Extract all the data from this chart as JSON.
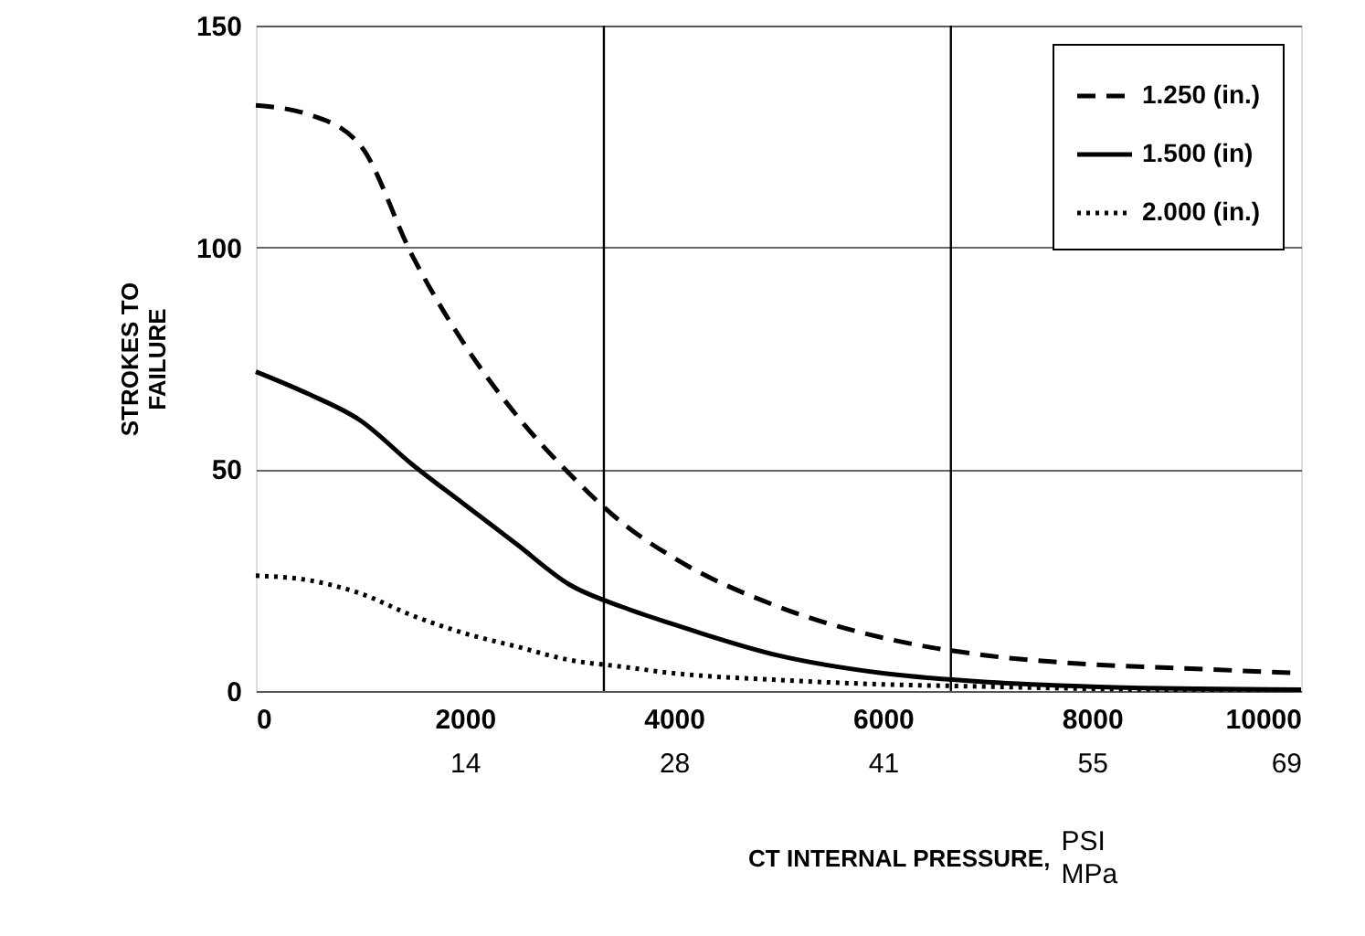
{
  "chart_data": {
    "type": "line",
    "ylabel": "STROKES TO FAILURE",
    "xlabel": "CT INTERNAL PRESSURE,",
    "annotations": [
      "PSI",
      "MPa"
    ],
    "x": [
      0,
      500,
      1000,
      1500,
      2000,
      2500,
      3000,
      3500,
      4000,
      5000,
      6000,
      7000,
      8000,
      9000,
      10000
    ],
    "series": [
      {
        "name": "1.250 (in.)",
        "color": "#000000",
        "line_style": "dashed",
        "values": [
          132,
          130,
          123,
          98,
          78,
          62,
          49,
          38,
          30,
          19,
          12,
          8,
          6,
          5,
          4
        ]
      },
      {
        "name": "1.500 (in)",
        "color": "#000000",
        "line_style": "solid",
        "values": [
          72,
          67,
          61,
          51,
          42,
          33,
          24,
          19,
          15,
          8,
          4,
          2,
          1,
          0.5,
          0.3
        ]
      },
      {
        "name": "2.000 (in.)",
        "color": "#000000",
        "line_style": "dotted",
        "values": [
          26,
          25,
          22,
          17,
          13,
          10,
          7,
          5.5,
          4,
          2.5,
          1.5,
          1,
          0.5,
          0.3,
          0.3
        ]
      }
    ],
    "xlim": [
      0,
      10000
    ],
    "xticks": [
      0,
      2000,
      4000,
      6000,
      8000,
      10000
    ],
    "x2lim": [
      0,
      68.95
    ],
    "x2ticks": [
      {
        "value": 13.79,
        "label": "14"
      },
      {
        "value": 27.58,
        "label": "28"
      },
      {
        "value": 41.37,
        "label": "41"
      },
      {
        "value": 55.16,
        "label": "55"
      },
      {
        "value": 68.95,
        "label": "69"
      }
    ],
    "ylim": [
      0,
      150
    ],
    "yticks": [
      0,
      50,
      100,
      150
    ],
    "ref_lines": [
      {
        "axis": "x",
        "value": 3330
      },
      {
        "axis": "x",
        "value": 6650
      }
    ],
    "grid": "y",
    "legend": "top right",
    "marker": "none"
  }
}
